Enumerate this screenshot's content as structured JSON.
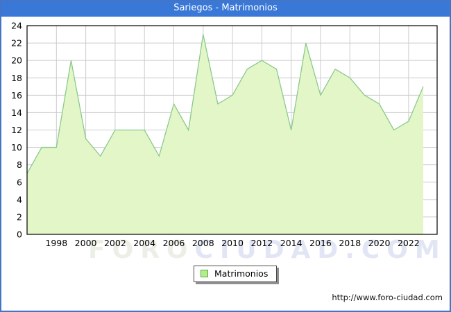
{
  "window": {
    "title": "Sariegos - Matrimonios"
  },
  "legend": {
    "label": "Matrimonios"
  },
  "watermark": {
    "part1": "FORO",
    "part2": "CIUDAD.COM"
  },
  "footer": {
    "url": "http://www.foro-ciudad.com"
  },
  "colors": {
    "titlebar_blue": "#3a78d7",
    "frame_blue": "#4474c4",
    "grid_gray": "#cccccc",
    "plot_border": "#000000",
    "area_fill": "#e2f6c8",
    "area_line": "#8cc98c",
    "legend_swatch_fill": "#b2ee8c",
    "legend_swatch_border": "#61a23f",
    "label_text": "#000000"
  },
  "chart_data": {
    "type": "area",
    "title": "Sariegos - Matrimonios",
    "x": [
      1996,
      1997,
      1998,
      1999,
      2000,
      2001,
      2002,
      2003,
      2004,
      2005,
      2006,
      2007,
      2008,
      2009,
      2010,
      2011,
      2012,
      2013,
      2014,
      2015,
      2016,
      2017,
      2018,
      2019,
      2020,
      2021,
      2022,
      2023
    ],
    "series": [
      {
        "name": "Matrimonios",
        "values": [
          7,
          10,
          10,
          20,
          11,
          9,
          12,
          12,
          12,
          9,
          15,
          12,
          23,
          15,
          16,
          19,
          20,
          19,
          12,
          22,
          16,
          19,
          18,
          16,
          15,
          12,
          13,
          17
        ]
      }
    ],
    "ylim": [
      0,
      24
    ],
    "ytick_step": 2,
    "xticks": [
      1998,
      2000,
      2002,
      2004,
      2006,
      2008,
      2010,
      2012,
      2014,
      2016,
      2018,
      2020,
      2022
    ],
    "xlabel": "",
    "ylabel": "",
    "grid": true,
    "legend_position": "bottom-center"
  }
}
